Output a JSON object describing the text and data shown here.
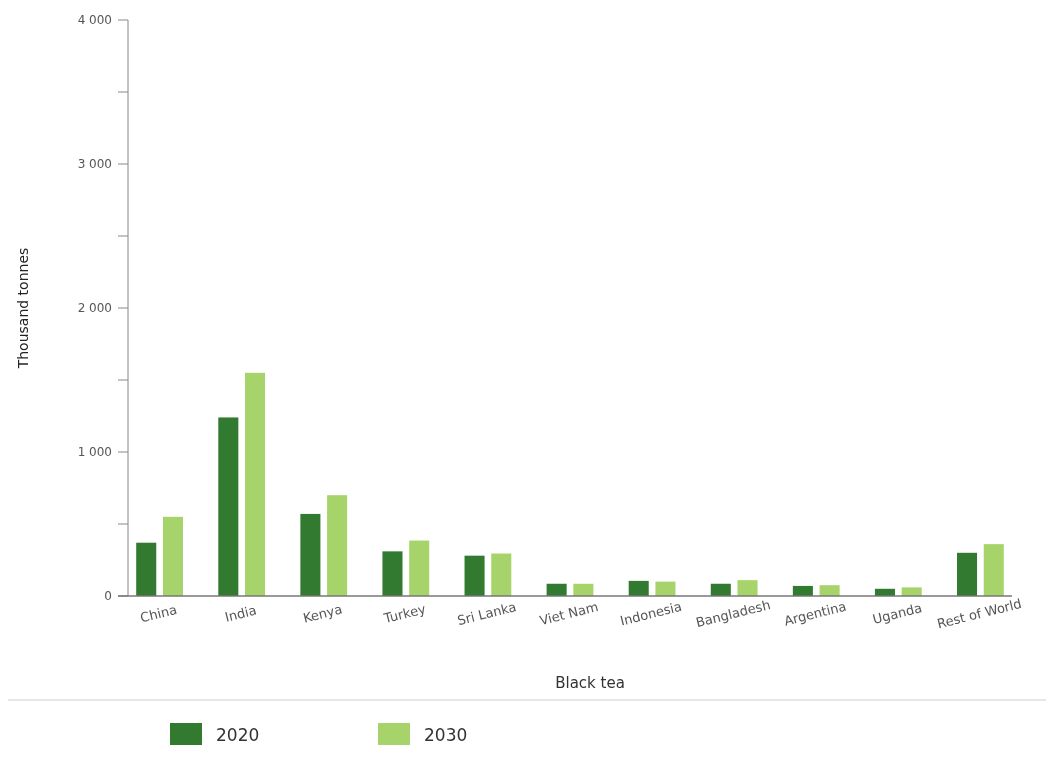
{
  "chart_data": {
    "type": "bar",
    "xlabel": "Black tea",
    "ylabel": "Thousand tonnes",
    "categories": [
      "China",
      "India",
      "Kenya",
      "Turkey",
      "Sri Lanka",
      "Viet Nam",
      "Indonesia",
      "Bangladesh",
      "Argentina",
      "Uganda",
      "Rest of World"
    ],
    "series": [
      {
        "name": "2020",
        "color": "#327a30",
        "values": [
          370,
          1240,
          570,
          310,
          280,
          85,
          105,
          85,
          70,
          50,
          300
        ]
      },
      {
        "name": "2030",
        "color": "#a6d46a",
        "values": [
          550,
          1550,
          700,
          385,
          295,
          85,
          100,
          110,
          75,
          60,
          360
        ]
      }
    ],
    "ylim": [
      0,
      4000
    ],
    "yticks": [
      {
        "value": 0,
        "label": "0"
      },
      {
        "value": 500,
        "label": null
      },
      {
        "value": 1000,
        "label": "1 000"
      },
      {
        "value": 1500,
        "label": null
      },
      {
        "value": 2000,
        "label": "2 000"
      },
      {
        "value": 2500,
        "label": null
      },
      {
        "value": 3000,
        "label": "3 000"
      },
      {
        "value": 3500,
        "label": null
      },
      {
        "value": 4000,
        "label": "4 000"
      }
    ],
    "grid": false,
    "legend": "bottom"
  }
}
